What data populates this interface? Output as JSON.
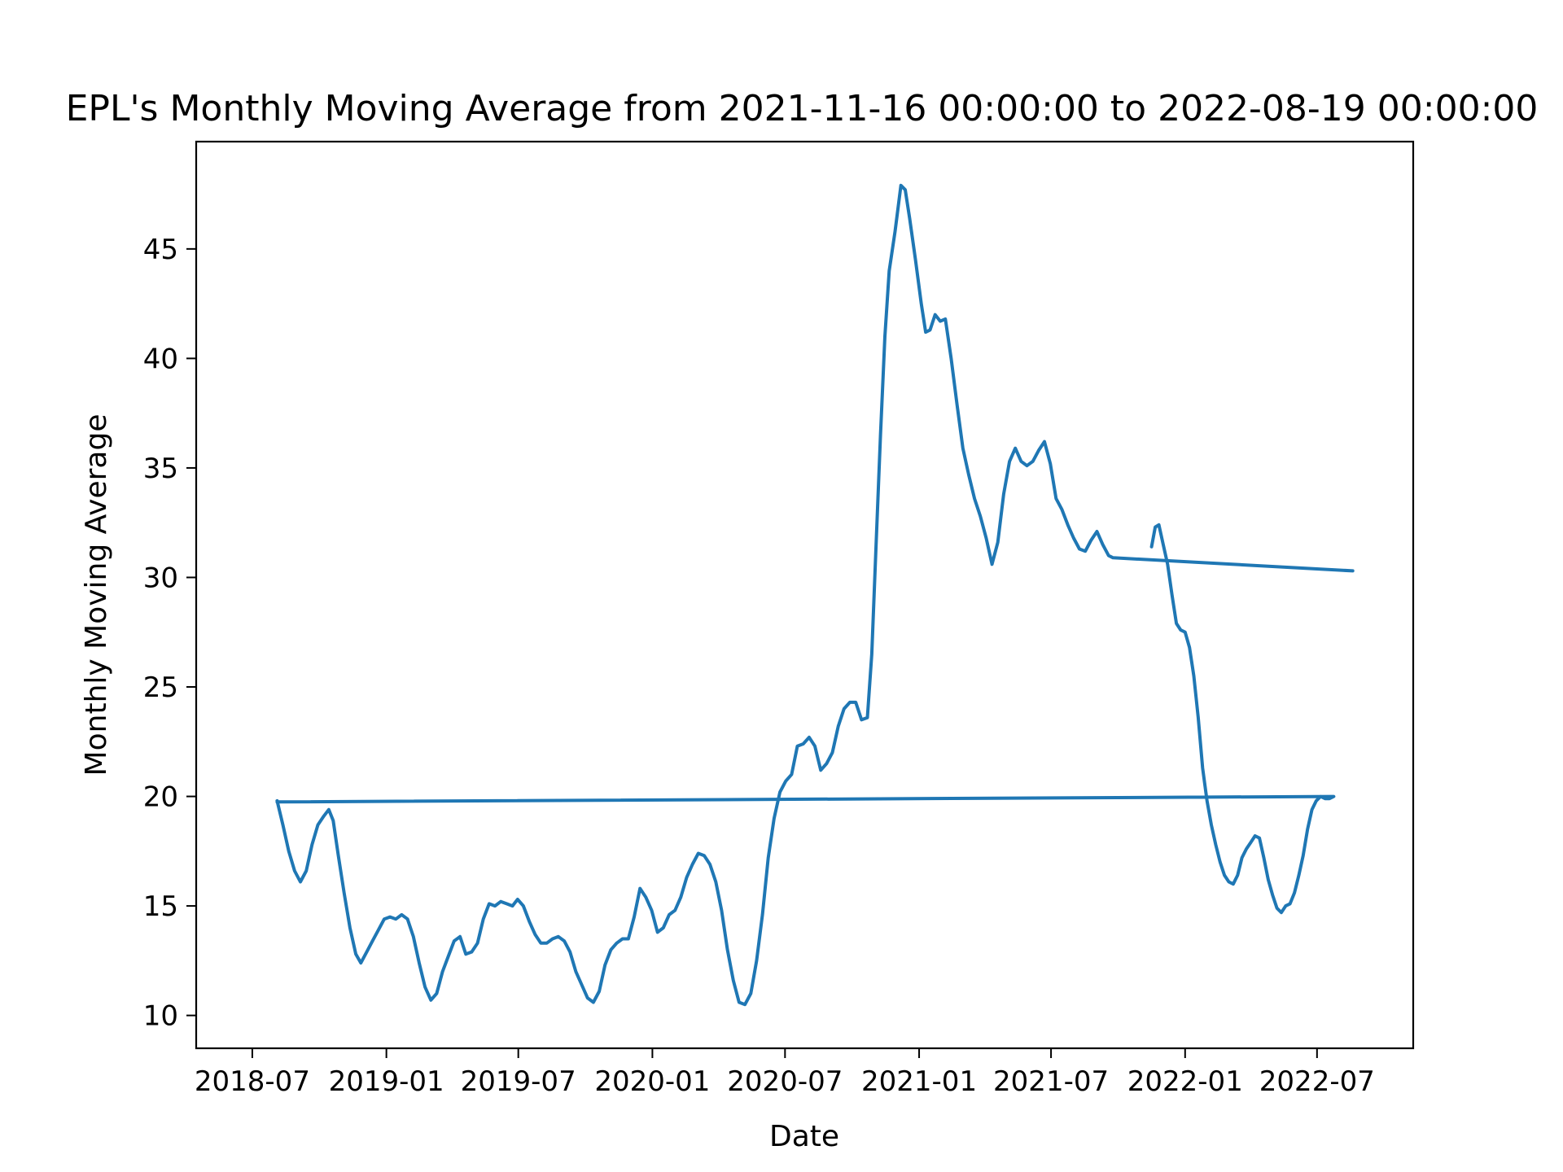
{
  "chart_data": {
    "type": "line",
    "title": "EPL's Monthly Moving Average from 2021-11-16 00:00:00 to 2022-08-19 00:00:00",
    "xlabel": "Date",
    "ylabel": "Monthly Moving Average",
    "xlim": [
      "2018-04-15",
      "2022-11-10"
    ],
    "ylim": [
      8.5,
      49.9
    ],
    "grid": false,
    "line_color": "#1f77b4",
    "x_ticks": [
      "2018-07",
      "2019-01",
      "2019-07",
      "2020-01",
      "2020-07",
      "2021-01",
      "2021-07",
      "2022-01",
      "2022-07"
    ],
    "y_ticks": [
      10,
      15,
      20,
      25,
      30,
      35,
      40,
      45
    ],
    "series": [
      {
        "points": [
          [
            "2018-08-04",
            19.8
          ],
          [
            "2018-08-12",
            18.7
          ],
          [
            "2018-08-20",
            17.5
          ],
          [
            "2018-08-28",
            16.6
          ],
          [
            "2018-09-05",
            16.1
          ],
          [
            "2018-09-13",
            16.6
          ],
          [
            "2018-09-21",
            17.8
          ],
          [
            "2018-09-29",
            18.7
          ],
          [
            "2018-10-07",
            19.1
          ],
          [
            "2018-10-14",
            19.4
          ],
          [
            "2018-10-20",
            18.9
          ],
          [
            "2018-10-27",
            17.3
          ],
          [
            "2018-11-04",
            15.6
          ],
          [
            "2018-11-12",
            14.0
          ],
          [
            "2018-11-20",
            12.8
          ],
          [
            "2018-11-27",
            12.4
          ],
          [
            "2018-12-05",
            12.9
          ],
          [
            "2018-12-13",
            13.4
          ],
          [
            "2018-12-21",
            13.9
          ],
          [
            "2018-12-29",
            14.4
          ],
          [
            "2019-01-06",
            14.5
          ],
          [
            "2019-01-14",
            14.4
          ],
          [
            "2019-01-22",
            14.6
          ],
          [
            "2019-01-30",
            14.4
          ],
          [
            "2019-02-07",
            13.6
          ],
          [
            "2019-02-15",
            12.4
          ],
          [
            "2019-02-23",
            11.3
          ],
          [
            "2019-03-03",
            10.7
          ],
          [
            "2019-03-11",
            11.0
          ],
          [
            "2019-03-19",
            12.0
          ],
          [
            "2019-03-27",
            12.7
          ],
          [
            "2019-04-04",
            13.4
          ],
          [
            "2019-04-12",
            13.6
          ],
          [
            "2019-04-20",
            12.8
          ],
          [
            "2019-04-28",
            12.9
          ],
          [
            "2019-05-06",
            13.3
          ],
          [
            "2019-05-14",
            14.4
          ],
          [
            "2019-05-22",
            15.1
          ],
          [
            "2019-05-30",
            15.0
          ],
          [
            "2019-06-07",
            15.2
          ],
          [
            "2019-06-15",
            15.1
          ],
          [
            "2019-06-23",
            15.0
          ],
          [
            "2019-06-30",
            15.3
          ],
          [
            "2019-07-08",
            15.0
          ],
          [
            "2019-07-16",
            14.3
          ],
          [
            "2019-07-24",
            13.7
          ],
          [
            "2019-08-01",
            13.3
          ],
          [
            "2019-08-09",
            13.3
          ],
          [
            "2019-08-17",
            13.5
          ],
          [
            "2019-08-25",
            13.6
          ],
          [
            "2019-09-02",
            13.4
          ],
          [
            "2019-09-10",
            12.9
          ],
          [
            "2019-09-18",
            12.0
          ],
          [
            "2019-09-26",
            11.4
          ],
          [
            "2019-10-04",
            10.8
          ],
          [
            "2019-10-12",
            10.6
          ],
          [
            "2019-10-20",
            11.1
          ],
          [
            "2019-10-28",
            12.3
          ],
          [
            "2019-11-05",
            13.0
          ],
          [
            "2019-11-13",
            13.3
          ],
          [
            "2019-11-21",
            13.5
          ],
          [
            "2019-11-29",
            13.5
          ],
          [
            "2019-12-07",
            14.5
          ],
          [
            "2019-12-15",
            15.8
          ],
          [
            "2019-12-23",
            15.4
          ],
          [
            "2019-12-31",
            14.8
          ],
          [
            "2020-01-08",
            13.8
          ],
          [
            "2020-01-16",
            14.0
          ],
          [
            "2020-01-24",
            14.6
          ],
          [
            "2020-02-01",
            14.8
          ],
          [
            "2020-02-09",
            15.4
          ],
          [
            "2020-02-17",
            16.3
          ],
          [
            "2020-02-25",
            16.9
          ],
          [
            "2020-03-04",
            17.4
          ],
          [
            "2020-03-12",
            17.3
          ],
          [
            "2020-03-20",
            16.9
          ],
          [
            "2020-03-28",
            16.1
          ],
          [
            "2020-04-05",
            14.8
          ],
          [
            "2020-04-13",
            13.0
          ],
          [
            "2020-04-21",
            11.6
          ],
          [
            "2020-04-29",
            10.6
          ],
          [
            "2020-05-07",
            10.5
          ],
          [
            "2020-05-15",
            11.0
          ],
          [
            "2020-05-23",
            12.5
          ],
          [
            "2020-05-31",
            14.6
          ],
          [
            "2020-06-08",
            17.2
          ],
          [
            "2020-06-16",
            19.0
          ],
          [
            "2020-06-24",
            20.2
          ],
          [
            "2020-07-02",
            20.7
          ],
          [
            "2020-07-10",
            21.0
          ],
          [
            "2020-07-18",
            22.3
          ],
          [
            "2020-07-26",
            22.4
          ],
          [
            "2020-08-03",
            22.7
          ],
          [
            "2020-08-11",
            22.3
          ],
          [
            "2020-08-19",
            21.2
          ],
          [
            "2020-08-27",
            21.5
          ],
          [
            "2020-09-04",
            22.0
          ],
          [
            "2020-09-12",
            23.2
          ],
          [
            "2020-09-20",
            24.0
          ],
          [
            "2020-09-28",
            24.3
          ],
          [
            "2020-10-06",
            24.3
          ],
          [
            "2020-10-14",
            23.5
          ],
          [
            "2020-10-22",
            23.6
          ],
          [
            "2020-10-28",
            26.5
          ],
          [
            "2020-11-03",
            31.5
          ],
          [
            "2020-11-09",
            36.5
          ],
          [
            "2020-11-15",
            41.0
          ],
          [
            "2020-11-21",
            44.0
          ],
          [
            "2020-11-29",
            45.8
          ],
          [
            "2020-12-07",
            47.9
          ],
          [
            "2020-12-13",
            47.7
          ],
          [
            "2020-12-19",
            46.4
          ],
          [
            "2020-12-27",
            44.5
          ],
          [
            "2021-01-04",
            42.5
          ],
          [
            "2021-01-10",
            41.2
          ],
          [
            "2021-01-16",
            41.3
          ],
          [
            "2021-01-23",
            42.0
          ],
          [
            "2021-01-30",
            41.7
          ],
          [
            "2021-02-06",
            41.8
          ],
          [
            "2021-02-14",
            40.0
          ],
          [
            "2021-02-22",
            37.9
          ],
          [
            "2021-03-02",
            35.9
          ],
          [
            "2021-03-10",
            34.7
          ],
          [
            "2021-03-18",
            33.6
          ],
          [
            "2021-03-26",
            32.8
          ],
          [
            "2021-04-03",
            31.8
          ],
          [
            "2021-04-11",
            30.6
          ],
          [
            "2021-04-19",
            31.6
          ],
          [
            "2021-04-27",
            33.8
          ],
          [
            "2021-05-05",
            35.3
          ],
          [
            "2021-05-13",
            35.9
          ],
          [
            "2021-05-21",
            35.3
          ],
          [
            "2021-05-29",
            35.1
          ],
          [
            "2021-06-06",
            35.3
          ],
          [
            "2021-06-14",
            35.8
          ],
          [
            "2021-06-22",
            36.2
          ],
          [
            "2021-06-30",
            35.2
          ],
          [
            "2021-07-08",
            33.6
          ],
          [
            "2021-07-16",
            33.1
          ],
          [
            "2021-07-24",
            32.4
          ],
          [
            "2021-08-01",
            31.8
          ],
          [
            "2021-08-09",
            31.3
          ],
          [
            "2021-08-17",
            31.2
          ],
          [
            "2021-08-25",
            31.7
          ],
          [
            "2021-09-02",
            32.1
          ],
          [
            "2021-09-10",
            31.5
          ],
          [
            "2021-09-18",
            31.0
          ],
          [
            "2021-09-24",
            30.9
          ],
          [
            "2022-08-19",
            30.3
          ]
        ]
      },
      {
        "points": [
          [
            "2021-11-16",
            31.4
          ],
          [
            "2021-11-21",
            32.3
          ],
          [
            "2021-11-26",
            32.4
          ],
          [
            "2021-12-02",
            31.5
          ],
          [
            "2021-12-08",
            30.6
          ],
          [
            "2021-12-14",
            29.2
          ],
          [
            "2021-12-20",
            27.9
          ],
          [
            "2021-12-26",
            27.6
          ],
          [
            "2022-01-01",
            27.5
          ],
          [
            "2022-01-07",
            26.8
          ],
          [
            "2022-01-13",
            25.5
          ],
          [
            "2022-01-19",
            23.6
          ],
          [
            "2022-01-25",
            21.3
          ],
          [
            "2022-01-31",
            19.8
          ],
          [
            "2022-02-06",
            18.7
          ],
          [
            "2022-02-12",
            17.8
          ],
          [
            "2022-02-18",
            17.0
          ],
          [
            "2022-02-24",
            16.4
          ],
          [
            "2022-03-02",
            16.1
          ],
          [
            "2022-03-08",
            16.0
          ],
          [
            "2022-03-14",
            16.4
          ],
          [
            "2022-03-20",
            17.2
          ],
          [
            "2022-03-26",
            17.6
          ],
          [
            "2022-04-01",
            17.9
          ],
          [
            "2022-04-07",
            18.2
          ],
          [
            "2022-04-13",
            18.1
          ],
          [
            "2022-04-19",
            17.2
          ],
          [
            "2022-04-25",
            16.2
          ],
          [
            "2022-05-01",
            15.5
          ],
          [
            "2022-05-07",
            14.9
          ],
          [
            "2022-05-13",
            14.7
          ],
          [
            "2022-05-19",
            15.0
          ],
          [
            "2022-05-25",
            15.1
          ],
          [
            "2022-05-31",
            15.6
          ],
          [
            "2022-06-06",
            16.4
          ],
          [
            "2022-06-12",
            17.3
          ],
          [
            "2022-06-18",
            18.5
          ],
          [
            "2022-06-24",
            19.4
          ],
          [
            "2022-06-30",
            19.8
          ],
          [
            "2022-07-06",
            20.0
          ],
          [
            "2022-07-12",
            19.9
          ],
          [
            "2022-07-18",
            19.9
          ],
          [
            "2022-07-24",
            20.0
          ],
          [
            "2018-08-04",
            19.75
          ]
        ]
      }
    ]
  }
}
